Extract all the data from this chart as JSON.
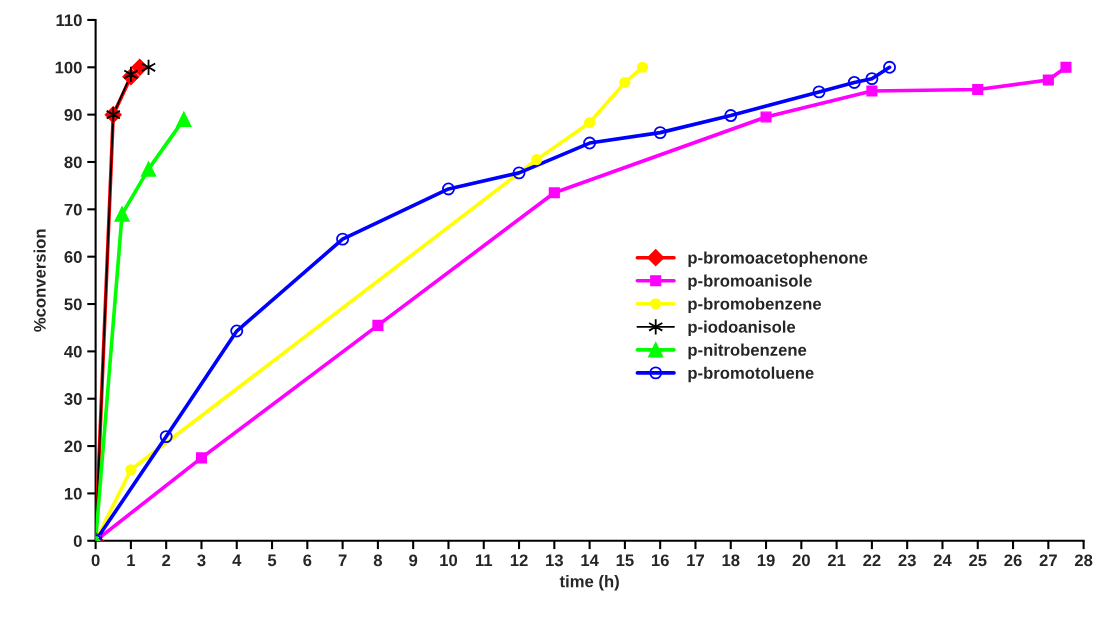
{
  "chart_data": {
    "type": "line",
    "xlabel": "time (h)",
    "ylabel": "%conversion",
    "xlim": [
      0,
      28
    ],
    "xticks": [
      0,
      1,
      2,
      3,
      4,
      5,
      6,
      7,
      8,
      9,
      10,
      11,
      12,
      13,
      14,
      15,
      16,
      17,
      18,
      19,
      20,
      21,
      22,
      23,
      24,
      25,
      26,
      27,
      28
    ],
    "ylim": [
      0,
      110
    ],
    "yticks": [
      0,
      10,
      20,
      30,
      40,
      50,
      60,
      70,
      80,
      90,
      100,
      110
    ],
    "grid": false,
    "legend": "right",
    "series": [
      {
        "name": "p-bromoacetophenone",
        "color": "#ff0000",
        "marker": "diamond",
        "x": [
          0,
          0.5,
          1,
          1.25
        ],
        "values": [
          0,
          90,
          98,
          100
        ]
      },
      {
        "name": "p-bromoanisole",
        "color": "#ff00ff",
        "marker": "square",
        "x": [
          0,
          3,
          8,
          13,
          19,
          22,
          25,
          27,
          27.5
        ],
        "values": [
          0,
          17.5,
          45.5,
          73.5,
          89.5,
          95,
          95.3,
          97.3,
          100
        ]
      },
      {
        "name": "p-bromobenzene",
        "color": "#ffff00",
        "marker": "circle",
        "x": [
          0,
          1,
          12.5,
          14,
          15,
          15.5
        ],
        "values": [
          0,
          15,
          80.5,
          88.3,
          96.8,
          100
        ]
      },
      {
        "name": "p-iodoanisole",
        "color": "#000000",
        "marker": "cross",
        "x": [
          0,
          0.5,
          1,
          1.5
        ],
        "values": [
          0,
          90,
          98.5,
          100
        ]
      },
      {
        "name": "p-nitrobenzene",
        "color": "#00ff00",
        "marker": "triangle",
        "x": [
          0,
          0.75,
          1.5,
          2.5
        ],
        "values": [
          0,
          69,
          78.5,
          89
        ]
      },
      {
        "name": "p-bromotoluene",
        "color": "#0000ff",
        "marker": "circle_open",
        "x": [
          0,
          2,
          4,
          7,
          10,
          12,
          14,
          16,
          18,
          20.5,
          21.5,
          22,
          22.5
        ],
        "values": [
          0,
          22,
          44.3,
          63.7,
          74.3,
          77.7,
          84,
          86.2,
          89.8,
          94.8,
          96.8,
          97.6,
          100
        ]
      }
    ]
  }
}
